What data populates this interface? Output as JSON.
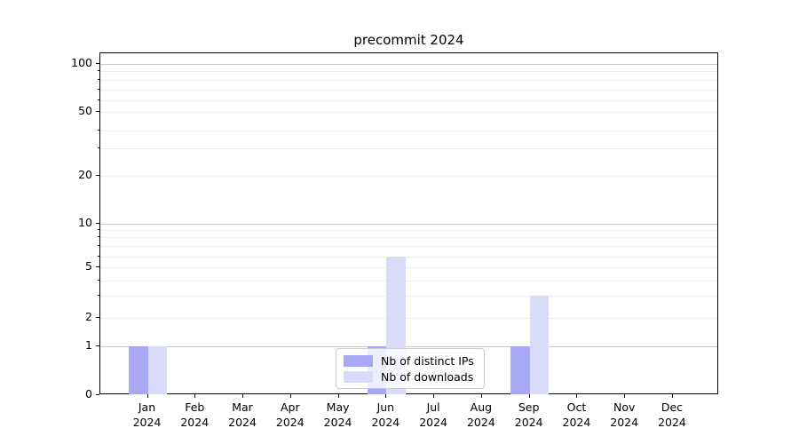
{
  "chart_data": {
    "type": "bar",
    "title": "precommit 2024",
    "categories": [
      {
        "month": "Jan",
        "year": "2024"
      },
      {
        "month": "Feb",
        "year": "2024"
      },
      {
        "month": "Mar",
        "year": "2024"
      },
      {
        "month": "Apr",
        "year": "2024"
      },
      {
        "month": "May",
        "year": "2024"
      },
      {
        "month": "Jun",
        "year": "2024"
      },
      {
        "month": "Jul",
        "year": "2024"
      },
      {
        "month": "Aug",
        "year": "2024"
      },
      {
        "month": "Sep",
        "year": "2024"
      },
      {
        "month": "Oct",
        "year": "2024"
      },
      {
        "month": "Nov",
        "year": "2024"
      },
      {
        "month": "Dec",
        "year": "2024"
      }
    ],
    "series": [
      {
        "name": "Nb of distinct IPs",
        "color": "#a8a8f4",
        "values": [
          1,
          0,
          0,
          0,
          0,
          1,
          0,
          0,
          1,
          0,
          0,
          0
        ]
      },
      {
        "name": "Nb of downloads",
        "color": "#dadaf9",
        "values": [
          1,
          0,
          0,
          0,
          0,
          6,
          0,
          0,
          3,
          0,
          0,
          0
        ]
      }
    ],
    "y_axis": {
      "scale": "symlog",
      "tick_values": [
        0,
        1,
        2,
        5,
        10,
        20,
        50,
        100
      ],
      "tick_labels": [
        "0",
        "1",
        "2",
        "5",
        "10",
        "20",
        "50",
        "100"
      ],
      "major_grid_values": [
        1,
        10,
        100
      ],
      "minor_grid_values": [
        2,
        3,
        4,
        5,
        6,
        7,
        8,
        9,
        20,
        30,
        40,
        50,
        60,
        70,
        80,
        90
      ]
    },
    "legend": {
      "position": "lower center"
    },
    "colors": {
      "grid_major": "#c8c8c8",
      "grid_minor": "#ececec",
      "spine": "#000000",
      "background": "#ffffff"
    }
  }
}
